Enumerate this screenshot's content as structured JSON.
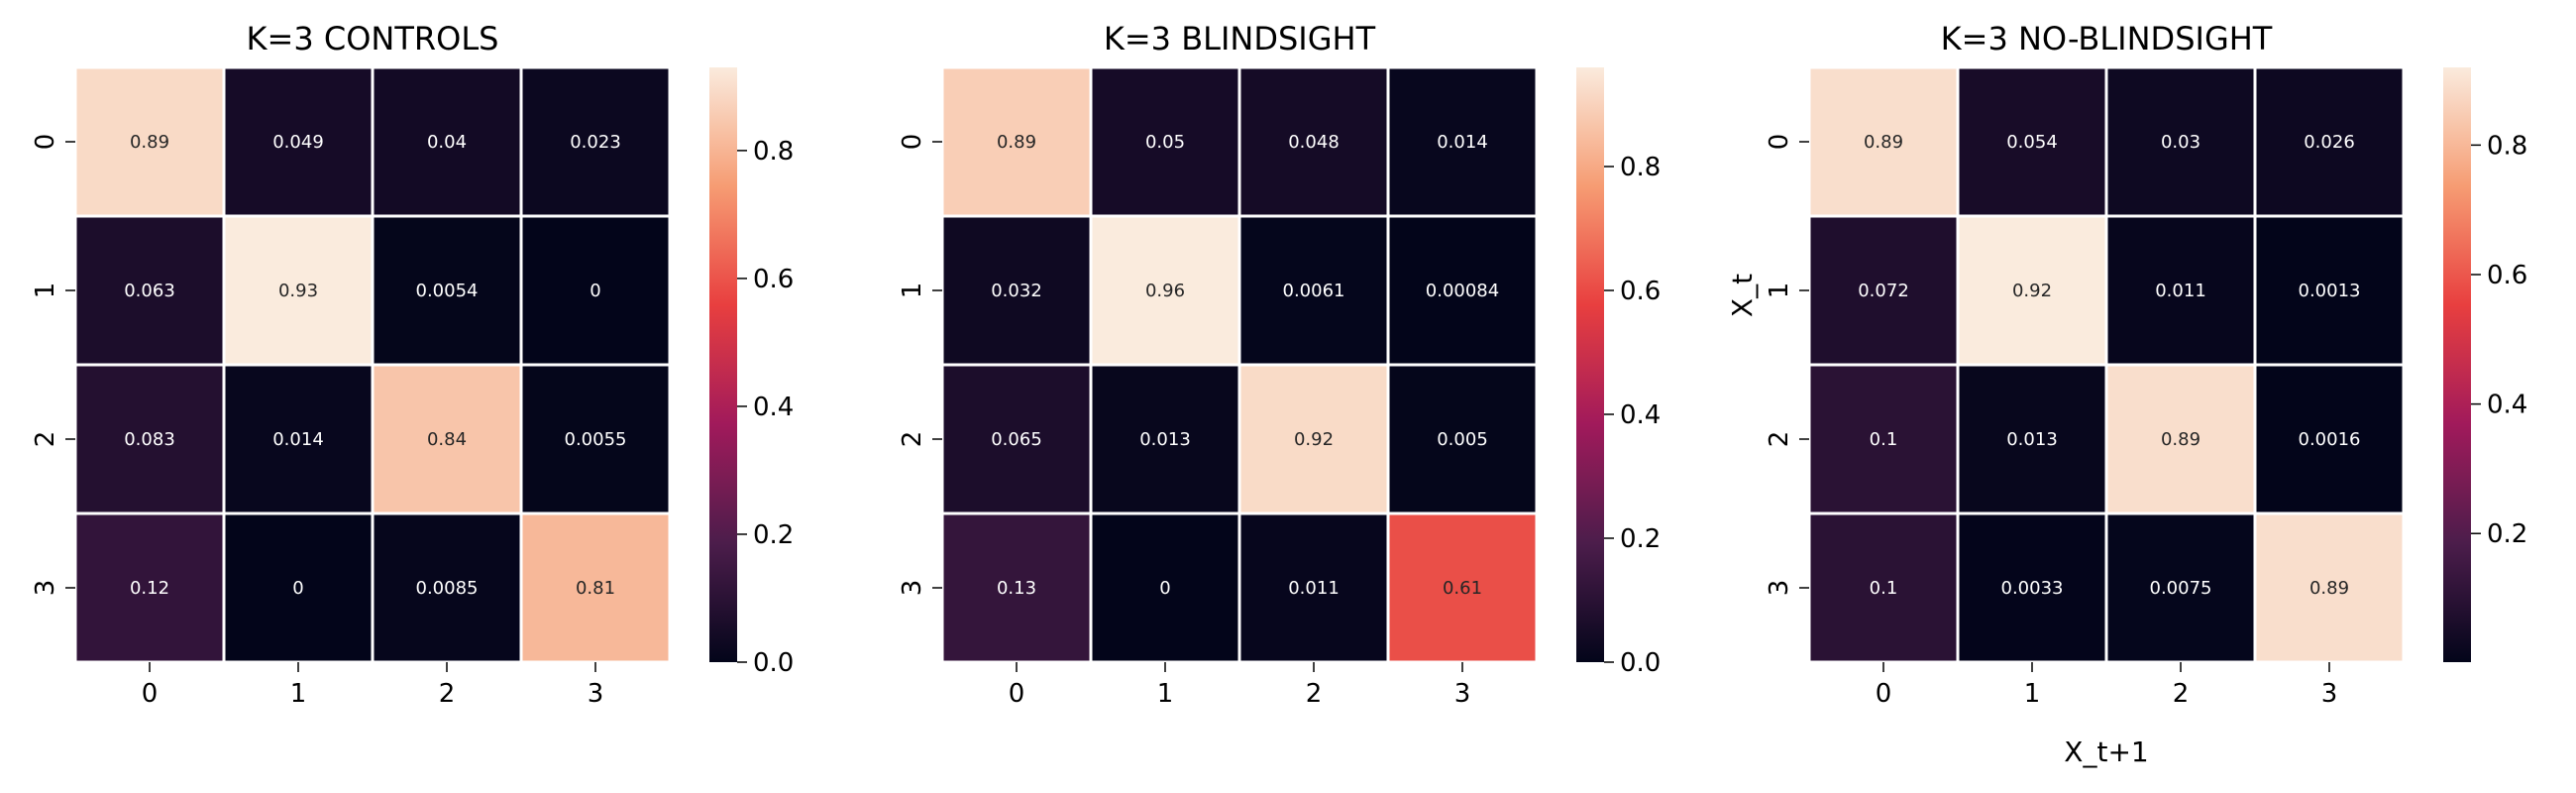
{
  "chart_data": [
    {
      "type": "heatmap",
      "title": "K=3 CONTROLS",
      "x_tick_labels": [
        "0",
        "1",
        "2",
        "3"
      ],
      "y_tick_labels": [
        "0",
        "1",
        "2",
        "3"
      ],
      "xlabel": "",
      "ylabel": "",
      "value_range": [
        0.0,
        0.93
      ],
      "colorbar_ticks": [
        0.0,
        0.2,
        0.4,
        0.6,
        0.8
      ],
      "colorbar_tick_labels": [
        "0.0",
        "0.2",
        "0.4",
        "0.6",
        "0.8"
      ],
      "values": [
        [
          0.89,
          0.049,
          0.04,
          0.023
        ],
        [
          0.063,
          0.93,
          0.0054,
          0
        ],
        [
          0.083,
          0.014,
          0.84,
          0.0055
        ],
        [
          0.12,
          0,
          0.0085,
          0.81
        ]
      ],
      "cell_labels": [
        [
          "0.89",
          "0.049",
          "0.04",
          "0.023"
        ],
        [
          "0.063",
          "0.93",
          "0.0054",
          "0"
        ],
        [
          "0.083",
          "0.014",
          "0.84",
          "0.0055"
        ],
        [
          "0.12",
          "0",
          "0.0085",
          "0.81"
        ]
      ]
    },
    {
      "type": "heatmap",
      "title": "K=3 BLINDSIGHT",
      "x_tick_labels": [
        "0",
        "1",
        "2",
        "3"
      ],
      "y_tick_labels": [
        "0",
        "1",
        "2",
        "3"
      ],
      "xlabel": "",
      "ylabel": "",
      "value_range": [
        0.0,
        0.96
      ],
      "colorbar_ticks": [
        0.0,
        0.2,
        0.4,
        0.6,
        0.8
      ],
      "colorbar_tick_labels": [
        "0.0",
        "0.2",
        "0.4",
        "0.6",
        "0.8"
      ],
      "values": [
        [
          0.89,
          0.05,
          0.048,
          0.014
        ],
        [
          0.032,
          0.96,
          0.0061,
          0.00084
        ],
        [
          0.065,
          0.013,
          0.92,
          0.005
        ],
        [
          0.13,
          0,
          0.011,
          0.61
        ]
      ],
      "cell_labels": [
        [
          "0.89",
          "0.05",
          "0.048",
          "0.014"
        ],
        [
          "0.032",
          "0.96",
          "0.0061",
          "0.00084"
        ],
        [
          "0.065",
          "0.013",
          "0.92",
          "0.005"
        ],
        [
          "0.13",
          "0",
          "0.011",
          "0.61"
        ]
      ]
    },
    {
      "type": "heatmap",
      "title": "K=3 NO-BLINDSIGHT",
      "x_tick_labels": [
        "0",
        "1",
        "2",
        "3"
      ],
      "y_tick_labels": [
        "0",
        "1",
        "2",
        "3"
      ],
      "xlabel": "X_t+1",
      "ylabel": "X_t",
      "value_range": [
        0.0013,
        0.92
      ],
      "colorbar_ticks": [
        0.2,
        0.4,
        0.6,
        0.8
      ],
      "colorbar_tick_labels": [
        "0.2",
        "0.4",
        "0.6",
        "0.8"
      ],
      "values": [
        [
          0.89,
          0.054,
          0.03,
          0.026
        ],
        [
          0.072,
          0.92,
          0.011,
          0.0013
        ],
        [
          0.1,
          0.013,
          0.89,
          0.0016
        ],
        [
          0.1,
          0.0033,
          0.0075,
          0.89
        ]
      ],
      "cell_labels": [
        [
          "0.89",
          "0.054",
          "0.03",
          "0.026"
        ],
        [
          "0.072",
          "0.92",
          "0.011",
          "0.0013"
        ],
        [
          "0.1",
          "0.013",
          "0.89",
          "0.0016"
        ],
        [
          "0.1",
          "0.0033",
          "0.0075",
          "0.89"
        ]
      ]
    }
  ],
  "colormap": [
    "#03051a",
    "#4c1d4b",
    "#a11a5b",
    "#e83f3f",
    "#f69c73",
    "#faebdd"
  ]
}
